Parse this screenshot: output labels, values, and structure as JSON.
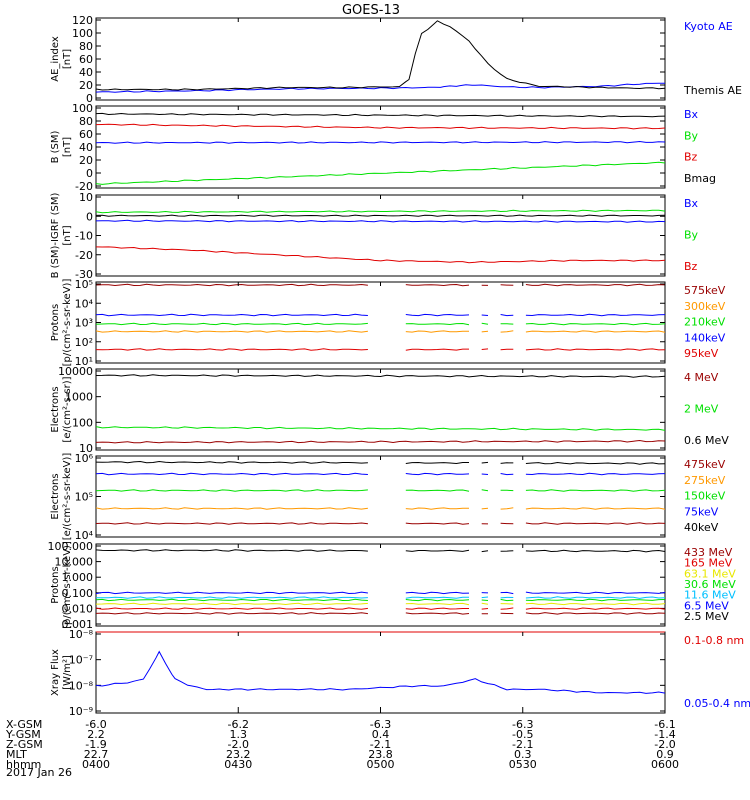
{
  "title": "GOES-13",
  "date_label": "2017 Jan 26",
  "x_axis": {
    "times": [
      "0400",
      "0430",
      "0500",
      "0530",
      "0600"
    ],
    "row_labels": [
      "X-GSM",
      "Y-GSM",
      "Z-GSM",
      "MLT",
      "hhmm"
    ],
    "rows": [
      [
        "-6.0",
        "-6.2",
        "-6.3",
        "-6.3",
        "-6.1"
      ],
      [
        "2.2",
        "1.3",
        "0.4",
        "-0.5",
        "-1.4"
      ],
      [
        "-1.9",
        "-2.0",
        "-2.1",
        "-2.1",
        "-2.0"
      ],
      [
        "22.7",
        "23.2",
        "23.8",
        "0.3",
        "0.9"
      ],
      [
        "0400",
        "0430",
        "0500",
        "0530",
        "0600"
      ]
    ]
  },
  "colors": {
    "black": "#000000",
    "blue": "#0000ff",
    "green": "#00e000",
    "red": "#e00000",
    "orange": "#ff9900",
    "dark_red": "#990000",
    "yellow": "#e8e800",
    "cyan": "#00c0ff",
    "purple": "#c000c0"
  },
  "chart_data": [
    {
      "type": "line",
      "id": "ae",
      "ylabel": "AE_index\n[nT]",
      "ylim": [
        0,
        125
      ],
      "scale": "linear",
      "ticks": [
        "120",
        "100",
        "80",
        "60",
        "40",
        "20",
        "0"
      ],
      "series": [
        {
          "name": "Kyoto AE",
          "color": "#0000ff",
          "x": [
            0,
            30,
            60,
            90,
            105,
            110,
            115,
            120,
            130,
            140,
            150,
            160,
            170,
            180
          ],
          "y": [
            12,
            14,
            17,
            18,
            19,
            20,
            22,
            23,
            20,
            19,
            20,
            21,
            24,
            26
          ]
        },
        {
          "name": "Themis AE",
          "color": "#000000",
          "x": [
            0,
            30,
            60,
            80,
            90,
            96,
            99,
            101,
            103,
            108,
            112,
            118,
            124,
            130,
            140,
            150,
            160,
            170,
            180
          ],
          "y": [
            16,
            16,
            19,
            19,
            20,
            20,
            32,
            70,
            101,
            120,
            112,
            90,
            55,
            32,
            21,
            20,
            19,
            18,
            18
          ]
        }
      ]
    },
    {
      "type": "line",
      "id": "bsm",
      "ylabel": "B (SM)\n[nT]",
      "ylim": [
        -25,
        100
      ],
      "scale": "linear",
      "ticks": [
        "100",
        "80",
        "60",
        "40",
        "20",
        "0",
        "-20"
      ],
      "series": [
        {
          "name": "Bx",
          "color": "#0000ff",
          "x": [
            0,
            180
          ],
          "y": [
            44,
            45
          ]
        },
        {
          "name": "By",
          "color": "#00e000",
          "x": [
            0,
            180
          ],
          "y": [
            -19,
            14
          ]
        },
        {
          "name": "Bz",
          "color": "#e00000",
          "x": [
            0,
            90,
            180
          ],
          "y": [
            72,
            67,
            66
          ]
        },
        {
          "name": "Bmag",
          "color": "#000000",
          "x": [
            0,
            180
          ],
          "y": [
            88,
            84
          ]
        }
      ]
    },
    {
      "type": "line",
      "id": "bigrf",
      "ylabel": "B (SM)-IGRF (SM)\n[nT]",
      "ylim": [
        -35,
        12
      ],
      "scale": "linear",
      "ticks": [
        "10",
        "0",
        "-10",
        "-20",
        "-30"
      ],
      "series": [
        {
          "name": "Bx",
          "color": "#0000ff",
          "x": [
            0,
            180
          ],
          "y": [
            -3,
            -3.5
          ]
        },
        {
          "name": "By",
          "color": "#00e000",
          "x": [
            0,
            180
          ],
          "y": [
            2,
            3
          ]
        },
        {
          "name": "Bz",
          "color": "#e00000",
          "x": [
            0,
            30,
            60,
            90,
            120,
            150,
            180
          ],
          "y": [
            -18,
            -20,
            -23,
            -26,
            -27,
            -26,
            -26
          ]
        },
        {
          "name": "",
          "color": "#000000",
          "x": [
            0,
            180
          ],
          "y": [
            0,
            0
          ]
        }
      ]
    },
    {
      "type": "line",
      "id": "protons_kev",
      "ylabel": "Protons\n[p/(cm²-s-sr-keV)]",
      "ylim": [
        0.8,
        6.2
      ],
      "scale": "log10",
      "ticks": [
        "10⁵",
        "10⁴",
        "10³",
        "10²",
        "10¹"
      ],
      "gaps": [
        [
          88,
          92
        ],
        [
          95,
          97
        ],
        [
          119,
          121
        ],
        [
          125,
          127
        ],
        [
          133,
          135
        ]
      ],
      "series": [
        {
          "name": "575keV",
          "color": "#990000",
          "x": [
            0,
            180
          ],
          "y": [
            6.0,
            6.0
          ]
        },
        {
          "name": "300keV",
          "color": "#ff9900",
          "x": [
            0,
            180
          ],
          "y": [
            2.9,
            2.9
          ]
        },
        {
          "name": "210keV",
          "color": "#00e000",
          "x": [
            0,
            180
          ],
          "y": [
            3.4,
            3.4
          ]
        },
        {
          "name": "140keV",
          "color": "#0000ff",
          "x": [
            0,
            180
          ],
          "y": [
            4.0,
            4.0
          ]
        },
        {
          "name": "95keV",
          "color": "#e00000",
          "x": [
            0,
            180
          ],
          "y": [
            1.7,
            1.7
          ]
        }
      ]
    },
    {
      "type": "line",
      "id": "electrons_mev",
      "ylabel": "Electrons\n[e/(cm²-s-sr)]",
      "ylim": [
        0.95,
        4.15
      ],
      "scale": "log10",
      "ticks": [
        "10000",
        "1000",
        "100",
        "10"
      ],
      "series": [
        {
          "name": "4 MeV",
          "color": "#990000",
          "x": [
            0,
            180
          ],
          "y": [
            1.25,
            1.3
          ]
        },
        {
          "name": "2 MeV",
          "color": "#00e000",
          "x": [
            0,
            180
          ],
          "y": [
            1.85,
            1.75
          ]
        },
        {
          "name": "0.6 MeV",
          "color": "#000000",
          "x": [
            0,
            180
          ],
          "y": [
            3.9,
            3.85
          ]
        }
      ]
    },
    {
      "type": "line",
      "id": "electrons_kev",
      "ylabel": "Electrons\n[e/(cm²-s-sr-keV)]",
      "ylim": [
        3.4,
        6.1
      ],
      "scale": "log10",
      "ticks": [
        "10⁶",
        "10⁵",
        "10⁴"
      ],
      "gaps": [
        [
          88,
          97
        ],
        [
          119,
          121
        ],
        [
          125,
          127
        ],
        [
          133,
          135
        ]
      ],
      "series": [
        {
          "name": "475keV",
          "color": "#990000",
          "x": [
            0,
            180
          ],
          "y": [
            3.85,
            3.85
          ]
        },
        {
          "name": "275keV",
          "color": "#ff9900",
          "x": [
            0,
            180
          ],
          "y": [
            4.35,
            4.35
          ]
        },
        {
          "name": "150keV",
          "color": "#00e000",
          "x": [
            0,
            180
          ],
          "y": [
            4.95,
            4.95
          ]
        },
        {
          "name": "75keV",
          "color": "#0000ff",
          "x": [
            0,
            180
          ],
          "y": [
            5.5,
            5.5
          ]
        },
        {
          "name": "40keV",
          "color": "#000000",
          "x": [
            0,
            180
          ],
          "y": [
            5.9,
            5.85
          ]
        }
      ]
    },
    {
      "type": "line",
      "id": "protons_mev",
      "ylabel": "Protons\n[p/(cm²-s-sr-keV)]",
      "ylim": [
        -3.1,
        2.1
      ],
      "scale": "log10",
      "ticks": [
        "100.000",
        "10.000",
        "1.000",
        "0.100",
        "0.010",
        "0.001"
      ],
      "gaps": [
        [
          88,
          92
        ],
        [
          95,
          97
        ],
        [
          119,
          121
        ],
        [
          125,
          127
        ],
        [
          133,
          135
        ]
      ],
      "series": [
        {
          "name": "433 MeV",
          "color": "#990000",
          "x": [
            0,
            180
          ],
          "y": [
            -2.3,
            -2.3
          ]
        },
        {
          "name": "165 MeV",
          "color": "#e00000",
          "x": [
            0,
            180
          ],
          "y": [
            -2.0,
            -2.0
          ]
        },
        {
          "name": "63.1 MeV",
          "color": "#e8e800",
          "x": [
            0,
            180
          ],
          "y": [
            -1.7,
            -1.7
          ]
        },
        {
          "name": "30.6 MeV",
          "color": "#00e000",
          "x": [
            0,
            180
          ],
          "y": [
            -1.45,
            -1.45
          ]
        },
        {
          "name": "11.6 MeV",
          "color": "#00c0ff",
          "x": [
            0,
            180
          ],
          "y": [
            -1.3,
            -1.3
          ]
        },
        {
          "name": "6.5 MeV",
          "color": "#0000ff",
          "x": [
            0,
            180
          ],
          "y": [
            -1.0,
            -1.0
          ]
        },
        {
          "name": "2.5 MeV",
          "color": "#000000",
          "x": [
            0,
            180
          ],
          "y": [
            1.7,
            1.65
          ]
        }
      ]
    },
    {
      "type": "line",
      "id": "xray",
      "ylabel": "Xray Flux\n[W/m²]",
      "ylim": [
        -9.1,
        -7.9
      ],
      "scale": "log10",
      "ticks": [
        "10⁻⁸",
        "10⁻⁷",
        "10⁻⁸",
        "10⁻⁹"
      ],
      "series": [
        {
          "name": "0.1-0.8 nm",
          "color": "#e00000",
          "x": [
            0,
            10,
            20,
            30,
            40,
            50,
            60,
            80,
            100,
            120,
            140,
            160,
            180
          ],
          "y": [
            -7.3,
            -7.35,
            -7.05,
            -7.3,
            -7.4,
            -7.35,
            -7.35,
            -7.35,
            -7.35,
            -7.35,
            -7.35,
            -7.35,
            -7.35
          ]
        },
        {
          "name": "0.05-0.4 nm",
          "color": "#0000ff",
          "x": [
            0,
            10,
            15,
            20,
            25,
            30,
            35,
            40,
            60,
            80,
            100,
            110,
            120,
            130,
            140,
            160,
            180
          ],
          "y": [
            -8.7,
            -8.65,
            -8.6,
            -8.2,
            -8.6,
            -8.7,
            -8.75,
            -8.75,
            -8.75,
            -8.75,
            -8.7,
            -8.7,
            -8.6,
            -8.75,
            -8.75,
            -8.8,
            -8.8
          ]
        }
      ]
    }
  ]
}
